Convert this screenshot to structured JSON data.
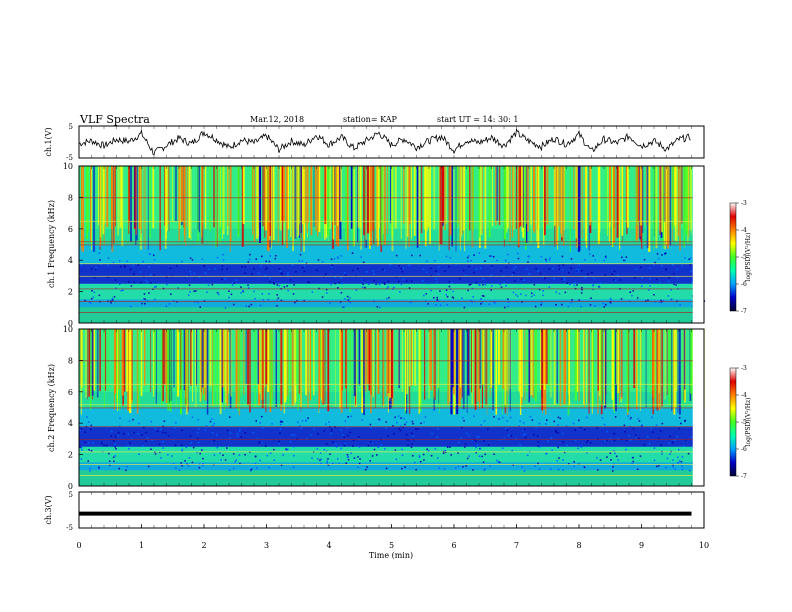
{
  "header": {
    "title": "VLF Spectra",
    "date": "Mar.12, 2018",
    "station": "station= KAP",
    "start": "start UT =  14: 30: 1"
  },
  "chart_data": [
    {
      "type": "line",
      "ylabel": "ch.1(V)",
      "ylim": [
        -5,
        5
      ],
      "xlim": [
        0,
        10
      ],
      "series": [
        {
          "x": [
            0,
            0.2,
            0.4,
            0.6,
            0.8,
            1.0,
            1.2,
            1.4,
            1.6,
            1.8,
            2.0,
            2.2,
            2.4,
            2.6,
            2.8,
            3.0,
            3.2,
            3.4,
            3.6,
            3.8,
            4.0,
            4.2,
            4.4,
            4.6,
            4.8,
            5.0,
            5.2,
            5.4,
            5.6,
            5.8,
            6.0,
            6.2,
            6.4,
            6.6,
            6.8,
            7.0,
            7.2,
            7.4,
            7.6,
            7.8,
            8.0,
            8.2,
            8.4,
            8.6,
            8.8,
            9.0,
            9.2,
            9.4,
            9.6,
            9.8
          ],
          "y": [
            -0.5,
            0.4,
            -1.2,
            0.8,
            0.2,
            2.6,
            -3.5,
            -1.0,
            1.2,
            -0.6,
            3.1,
            0.8,
            -1.8,
            0.6,
            -0.3,
            1.9,
            -2.4,
            0.3,
            -1.0,
            2.2,
            -0.8,
            1.5,
            -2.0,
            0.5,
            2.8,
            -0.9,
            1.0,
            -1.6,
            0.4,
            1.7,
            -2.5,
            0.6,
            -0.2,
            1.4,
            -1.1,
            2.9,
            0.2,
            -1.4,
            1.1,
            -0.7,
            2.4,
            -3.0,
            0.9,
            -0.4,
            1.8,
            -1.2,
            0.3,
            -2.2,
            0.8,
            1.6
          ]
        }
      ]
    },
    {
      "type": "heatmap",
      "ylabel": "ch.1 Frequency (kHz)",
      "ylim": [
        0,
        10
      ],
      "yticks": [
        0,
        2,
        4,
        6,
        8,
        10
      ],
      "xlim": [
        0,
        10
      ],
      "colorbar": {
        "label": "log(PSD)(V²/Hz)",
        "ticks": [
          -3,
          -4,
          -5,
          -6,
          -7
        ],
        "range": [
          -7,
          -3
        ],
        "colors": [
          "#000033",
          "#0000c8",
          "#00a0ff",
          "#00ffb0",
          "#40ff20",
          "#ffff00",
          "#ff8000",
          "#e00000",
          "#ffffff"
        ]
      }
    },
    {
      "type": "heatmap",
      "ylabel": "ch.2 Frequency (kHz)",
      "ylim": [
        0,
        10
      ],
      "yticks": [
        0,
        2,
        4,
        6,
        8,
        10
      ],
      "xlim": [
        0,
        10
      ],
      "colorbar": {
        "label": "log(PSD)(V²/Hz)",
        "ticks": [
          -3,
          -4,
          -5,
          -6,
          -7
        ],
        "range": [
          -7,
          -3
        ],
        "colors": [
          "#000033",
          "#0000c8",
          "#00a0ff",
          "#00ffb0",
          "#40ff20",
          "#ffff00",
          "#ff8000",
          "#e00000",
          "#ffffff"
        ]
      }
    },
    {
      "type": "line",
      "ylabel": "ch.3(V)",
      "ylim": [
        -5,
        5
      ],
      "xlim": [
        0,
        10
      ],
      "xlabel": "Time (min)",
      "xticks": [
        0,
        1,
        2,
        3,
        4,
        5,
        6,
        7,
        8,
        9,
        10
      ],
      "series": [
        {
          "x": [
            0,
            9.8
          ],
          "y": [
            -1,
            -1
          ]
        }
      ]
    }
  ]
}
